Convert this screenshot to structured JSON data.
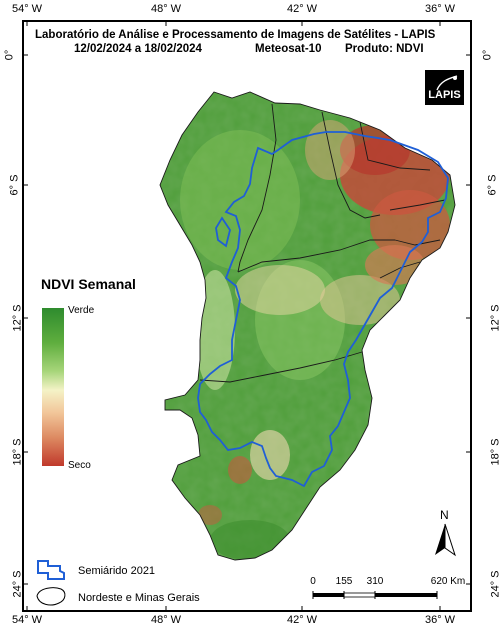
{
  "header": {
    "line1": "Laboratório de Análise e Processamento de Imagens de Satélites - LAPIS",
    "dates": "12/02/2024  a  18/02/2024",
    "satellite": "Meteosat-10",
    "product": "Produto: NDVI"
  },
  "graticule": {
    "longitudes": [
      "54° W",
      "48° W",
      "42° W",
      "36° W"
    ],
    "latitudes": [
      "0°",
      "6° S",
      "12° S",
      "18° S",
      "24° S"
    ]
  },
  "logo": {
    "text": "LAPIS",
    "icon": "satellite-icon"
  },
  "legend": {
    "title": "NDVI Semanal",
    "high_label": "Verde",
    "low_label": "Seco",
    "ramp_colors": [
      "#2e8b2e",
      "#a7d57a",
      "#f4f3c7",
      "#dd8a62",
      "#c0392b"
    ],
    "semiarid_label": "Semiárido 2021",
    "region_label": "Nordeste e Minas Gerais",
    "semiarid_color": "#1f5fd6"
  },
  "scale_bar": {
    "ticks": [
      "0",
      "155",
      "310",
      "620 Km"
    ]
  },
  "north_arrow": {
    "label": "N",
    "icon": "north-arrow-icon"
  }
}
